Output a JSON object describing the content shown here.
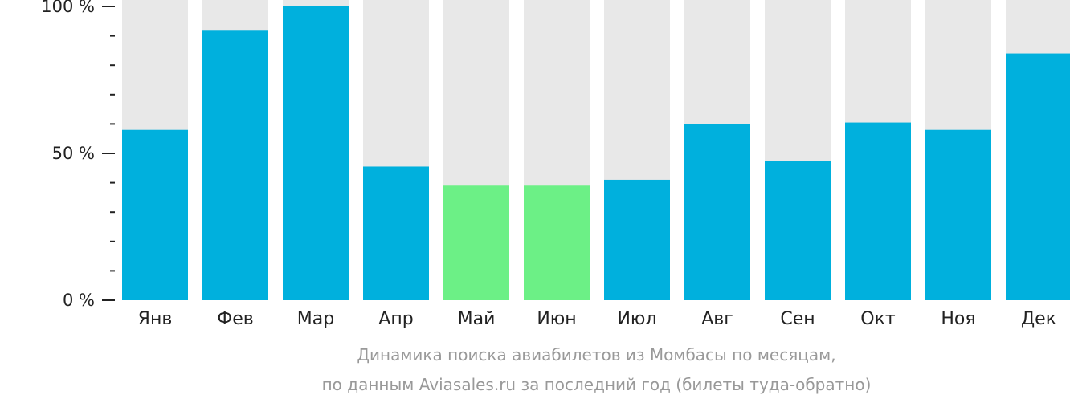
{
  "chart_data": {
    "type": "bar",
    "categories": [
      "Янв",
      "Фев",
      "Мар",
      "Апр",
      "Май",
      "Июн",
      "Июл",
      "Авг",
      "Сен",
      "Окт",
      "Ноя",
      "Дек"
    ],
    "values": [
      58,
      92,
      100,
      45.5,
      39,
      39,
      41,
      60,
      47.5,
      60.5,
      58,
      84
    ],
    "ylim": [
      0,
      100
    ],
    "y_ticks": [
      {
        "value": 0,
        "label": "0 %"
      },
      {
        "value": 50,
        "label": "50 %"
      },
      {
        "value": 100,
        "label": "100 %"
      }
    ],
    "y_minor_ticks": [
      10,
      20,
      30,
      40,
      60,
      70,
      80,
      90
    ],
    "highlighted_categories": [
      "Май",
      "Июн"
    ],
    "colors": {
      "bar": "#00b0dd",
      "bar_highlight": "#6cf086",
      "bar_background": "#e8e8e8",
      "axis": "#222222",
      "caption": "#999999"
    }
  },
  "caption": {
    "line1": "Динамика поиска авиабилетов из Момбасы по месяцам,",
    "line2": "по данным Aviasales.ru за последний год (билеты туда-обратно)"
  }
}
